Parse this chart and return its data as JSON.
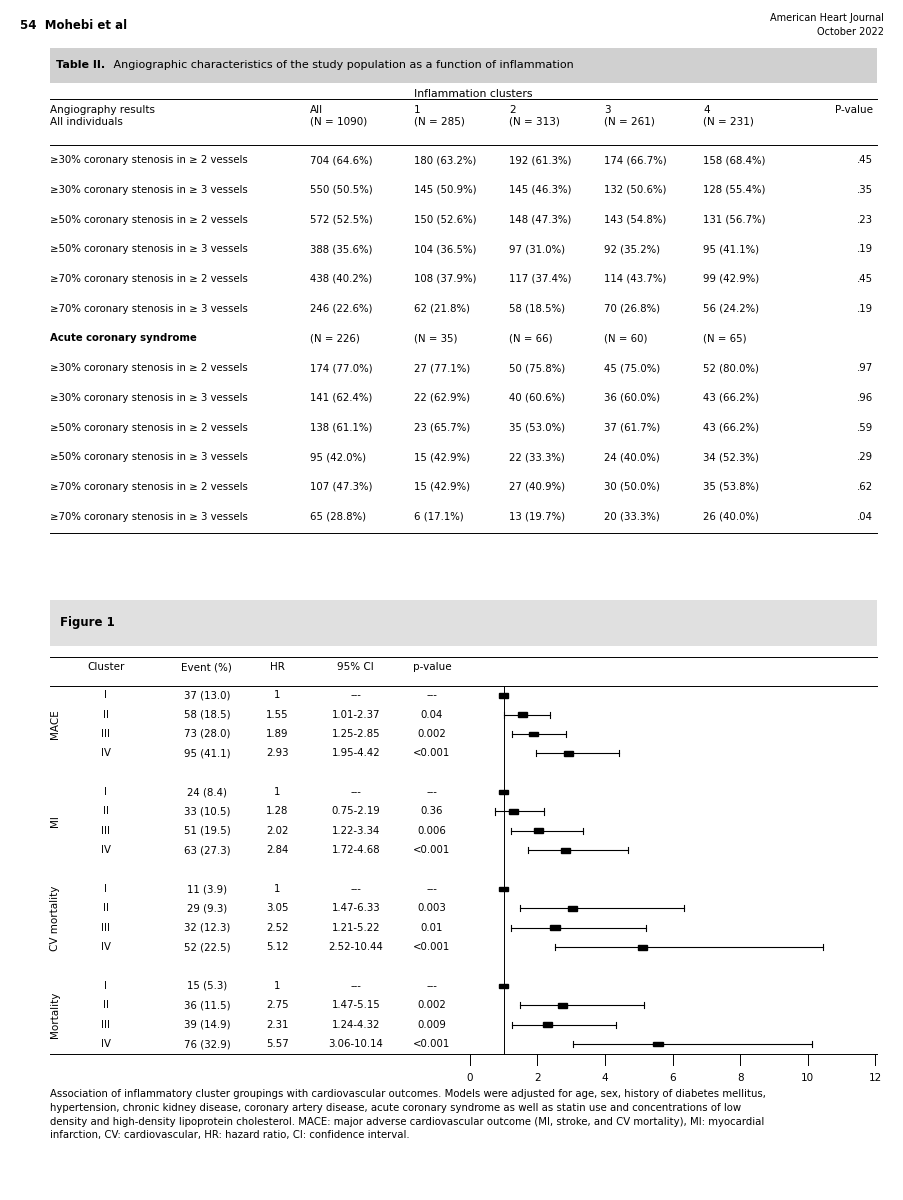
{
  "header_left": "54  Mohebi et al",
  "header_right": "American Heart Journal\nOctober 2022",
  "table_title": "Table II.",
  "table_title_suffix": " Angiographic characteristics of the study population as a function of inflammation",
  "table_bg": "#d8d8d8",
  "col_subheaders": [
    "Angiography results\nAll individuals",
    "All\n(N = 1090)",
    "1\n(N = 285)",
    "2\n(N = 313)",
    "3\n(N = 261)",
    "4\n(N = 231)",
    "P-value"
  ],
  "table_rows": [
    [
      "≥30% coronary stenosis in ≥ 2 vessels",
      "704 (64.6%)",
      "180 (63.2%)",
      "192 (61.3%)",
      "174 (66.7%)",
      "158 (68.4%)",
      ".45"
    ],
    [
      "≥30% coronary stenosis in ≥ 3 vessels",
      "550 (50.5%)",
      "145 (50.9%)",
      "145 (46.3%)",
      "132 (50.6%)",
      "128 (55.4%)",
      ".35"
    ],
    [
      "≥50% coronary stenosis in ≥ 2 vessels",
      "572 (52.5%)",
      "150 (52.6%)",
      "148 (47.3%)",
      "143 (54.8%)",
      "131 (56.7%)",
      ".23"
    ],
    [
      "≥50% coronary stenosis in ≥ 3 vessels",
      "388 (35.6%)",
      "104 (36.5%)",
      "97 (31.0%)",
      "92 (35.2%)",
      "95 (41.1%)",
      ".19"
    ],
    [
      "≥70% coronary stenosis in ≥ 2 vessels",
      "438 (40.2%)",
      "108 (37.9%)",
      "117 (37.4%)",
      "114 (43.7%)",
      "99 (42.9%)",
      ".45"
    ],
    [
      "≥70% coronary stenosis in ≥ 3 vessels",
      "246 (22.6%)",
      "62 (21.8%)",
      "58 (18.5%)",
      "70 (26.8%)",
      "56 (24.2%)",
      ".19"
    ],
    [
      "Acute coronary syndrome",
      "(N = 226)",
      "(N = 35)",
      "(N = 66)",
      "(N = 60)",
      "(N = 65)",
      ""
    ],
    [
      "≥30% coronary stenosis in ≥ 2 vessels",
      "174 (77.0%)",
      "27 (77.1%)",
      "50 (75.8%)",
      "45 (75.0%)",
      "52 (80.0%)",
      ".97"
    ],
    [
      "≥30% coronary stenosis in ≥ 3 vessels",
      "141 (62.4%)",
      "22 (62.9%)",
      "40 (60.6%)",
      "36 (60.0%)",
      "43 (66.2%)",
      ".96"
    ],
    [
      "≥50% coronary stenosis in ≥ 2 vessels",
      "138 (61.1%)",
      "23 (65.7%)",
      "35 (53.0%)",
      "37 (61.7%)",
      "43 (66.2%)",
      ".59"
    ],
    [
      "≥50% coronary stenosis in ≥ 3 vessels",
      "95 (42.0%)",
      "15 (42.9%)",
      "22 (33.3%)",
      "24 (40.0%)",
      "34 (52.3%)",
      ".29"
    ],
    [
      "≥70% coronary stenosis in ≥ 2 vessels",
      "107 (47.3%)",
      "15 (42.9%)",
      "27 (40.9%)",
      "30 (50.0%)",
      "35 (53.8%)",
      ".62"
    ],
    [
      "≥70% coronary stenosis in ≥ 3 vessels",
      "65 (28.8%)",
      "6 (17.1%)",
      "13 (19.7%)",
      "20 (33.3%)",
      "26 (40.0%)",
      ".04"
    ]
  ],
  "figure_title": "Figure 1",
  "forest_groups": [
    "MACE",
    "MI",
    "CV mortality",
    "Mortality"
  ],
  "forest_data": {
    "MACE": [
      {
        "cluster": "I",
        "event": "37 (13.0)",
        "hr_str": "1",
        "ci_str": "---",
        "pvalue": "---",
        "hr": 1.0,
        "ci_lo": null,
        "ci_hi": null
      },
      {
        "cluster": "II",
        "event": "58 (18.5)",
        "hr_str": "1.55",
        "ci_str": "1.01-2.37",
        "pvalue": "0.04",
        "hr": 1.55,
        "ci_lo": 1.01,
        "ci_hi": 2.37
      },
      {
        "cluster": "III",
        "event": "73 (28.0)",
        "hr_str": "1.89",
        "ci_str": "1.25-2.85",
        "pvalue": "0.002",
        "hr": 1.89,
        "ci_lo": 1.25,
        "ci_hi": 2.85
      },
      {
        "cluster": "IV",
        "event": "95 (41.1)",
        "hr_str": "2.93",
        "ci_str": "1.95-4.42",
        "pvalue": "<0.001",
        "hr": 2.93,
        "ci_lo": 1.95,
        "ci_hi": 4.42
      }
    ],
    "MI": [
      {
        "cluster": "I",
        "event": "24 (8.4)",
        "hr_str": "1",
        "ci_str": "---",
        "pvalue": "---",
        "hr": 1.0,
        "ci_lo": null,
        "ci_hi": null
      },
      {
        "cluster": "II",
        "event": "33 (10.5)",
        "hr_str": "1.28",
        "ci_str": "0.75-2.19",
        "pvalue": "0.36",
        "hr": 1.28,
        "ci_lo": 0.75,
        "ci_hi": 2.19
      },
      {
        "cluster": "III",
        "event": "51 (19.5)",
        "hr_str": "2.02",
        "ci_str": "1.22-3.34",
        "pvalue": "0.006",
        "hr": 2.02,
        "ci_lo": 1.22,
        "ci_hi": 3.34
      },
      {
        "cluster": "IV",
        "event": "63 (27.3)",
        "hr_str": "2.84",
        "ci_str": "1.72-4.68",
        "pvalue": "<0.001",
        "hr": 2.84,
        "ci_lo": 1.72,
        "ci_hi": 4.68
      }
    ],
    "CV mortality": [
      {
        "cluster": "I",
        "event": "11 (3.9)",
        "hr_str": "1",
        "ci_str": "---",
        "pvalue": "---",
        "hr": 1.0,
        "ci_lo": null,
        "ci_hi": null
      },
      {
        "cluster": "II",
        "event": "29 (9.3)",
        "hr_str": "3.05",
        "ci_str": "1.47-6.33",
        "pvalue": "0.003",
        "hr": 3.05,
        "ci_lo": 1.47,
        "ci_hi": 6.33
      },
      {
        "cluster": "III",
        "event": "32 (12.3)",
        "hr_str": "2.52",
        "ci_str": "1.21-5.22",
        "pvalue": "0.01",
        "hr": 2.52,
        "ci_lo": 1.21,
        "ci_hi": 5.22
      },
      {
        "cluster": "IV",
        "event": "52 (22.5)",
        "hr_str": "5.12",
        "ci_str": "2.52-10.44",
        "pvalue": "<0.001",
        "hr": 5.12,
        "ci_lo": 2.52,
        "ci_hi": 10.44
      }
    ],
    "Mortality": [
      {
        "cluster": "I",
        "event": "15 (5.3)",
        "hr_str": "1",
        "ci_str": "---",
        "pvalue": "---",
        "hr": 1.0,
        "ci_lo": null,
        "ci_hi": null
      },
      {
        "cluster": "II",
        "event": "36 (11.5)",
        "hr_str": "2.75",
        "ci_str": "1.47-5.15",
        "pvalue": "0.002",
        "hr": 2.75,
        "ci_lo": 1.47,
        "ci_hi": 5.15
      },
      {
        "cluster": "III",
        "event": "39 (14.9)",
        "hr_str": "2.31",
        "ci_str": "1.24-4.32",
        "pvalue": "0.009",
        "hr": 2.31,
        "ci_lo": 1.24,
        "ci_hi": 4.32
      },
      {
        "cluster": "IV",
        "event": "76 (32.9)",
        "hr_str": "5.57",
        "ci_str": "3.06-10.14",
        "pvalue": "<0.001",
        "hr": 5.57,
        "ci_lo": 3.06,
        "ci_hi": 10.14
      }
    ]
  },
  "forest_col_headers": [
    "Cluster",
    "Event (%)",
    "HR",
    "95% CI",
    "p-value"
  ],
  "forest_xlabel_ticks": [
    0,
    2,
    4,
    6,
    8,
    10,
    12
  ],
  "caption": "Association of inflammatory cluster groupings with cardiovascular outcomes. Models were adjusted for age, sex, history of diabetes mellitus,\nhypertension, chronic kidney disease, coronary artery disease, acute coronary syndrome as well as statin use and concentrations of low\ndensity and high-density lipoprotein cholesterol. MACE: major adverse cardiovascular outcome (MI, stroke, and CV mortality), MI: myocardial\ninfarction, CV: cardiovascular, HR: hazard ratio, CI: confidence interval."
}
